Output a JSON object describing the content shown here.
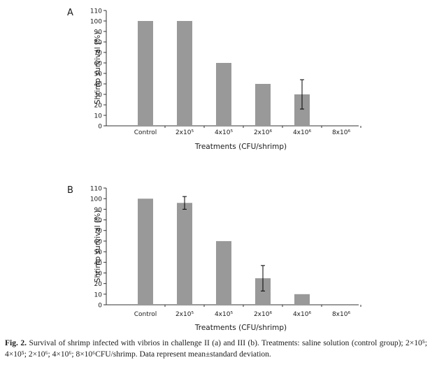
{
  "chart_data": [
    {
      "panel_label": "A",
      "type": "bar",
      "categories": [
        "Control",
        "2x10⁵",
        "4x10⁵",
        "2x10⁶",
        "4x10⁶",
        "8x10⁶"
      ],
      "values": [
        100,
        100,
        60,
        40,
        30,
        0
      ],
      "errors": [
        null,
        null,
        null,
        null,
        14,
        null
      ],
      "xlabel": "Treatments (CFU/shrimp)",
      "ylabel": "Shrimp survival (%)",
      "ylim": [
        0,
        110
      ],
      "yticks": [
        0,
        10,
        20,
        30,
        40,
        50,
        60,
        70,
        80,
        90,
        100,
        110
      ],
      "grid": false,
      "bar_color": "#999999"
    },
    {
      "panel_label": "B",
      "type": "bar",
      "categories": [
        "Control",
        "2x10⁵",
        "4x10⁵",
        "2x10⁶",
        "4x10⁶",
        "8x10⁶"
      ],
      "values": [
        100,
        96,
        60,
        25,
        10,
        0
      ],
      "errors": [
        null,
        6,
        null,
        12,
        null,
        null
      ],
      "xlabel": "Treatments (CFU/shrimp)",
      "ylabel": "Shrimp survival (%)",
      "ylim": [
        0,
        110
      ],
      "yticks": [
        0,
        10,
        20,
        30,
        40,
        50,
        60,
        70,
        80,
        90,
        100,
        110
      ],
      "grid": false,
      "bar_color": "#999999"
    }
  ],
  "caption": {
    "label": "Fig. 2.",
    "text": "Survival of shrimp infected with vibrios in challenge II (a) and III (b). Treatments: saline solution (control group); 2×10⁵; 4×10⁵; 2×10⁶; 4×10⁶; 8×10⁶CFU/shrimp. Data represent mean±standard deviation."
  }
}
